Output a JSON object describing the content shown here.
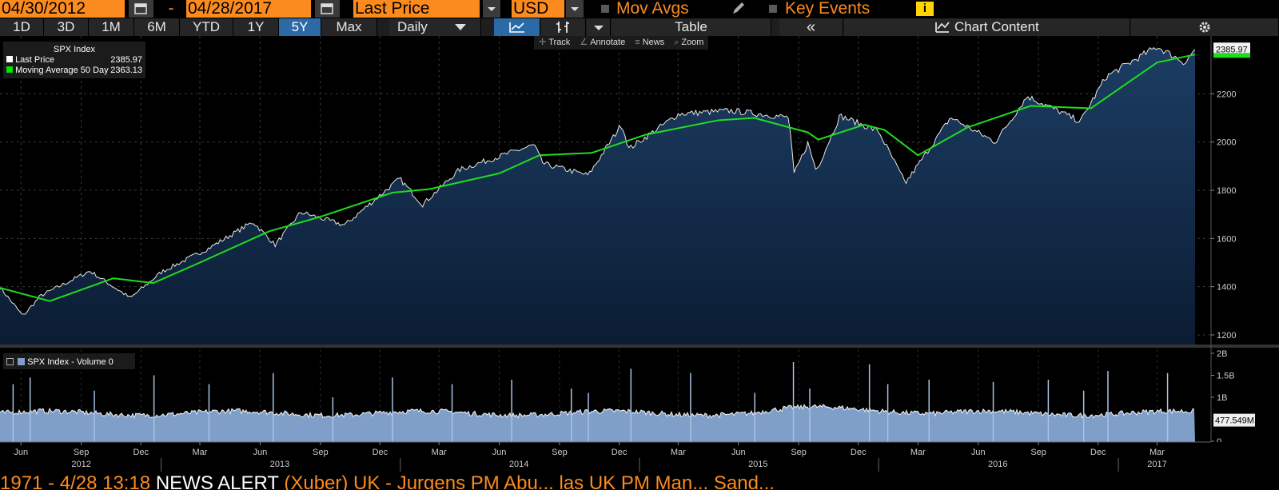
{
  "toolbar": {
    "start_date": "04/30/2012",
    "separator": "-",
    "end_date": "04/28/2017",
    "field": "Last Price",
    "currency": "USD",
    "mov_avgs": "Mov Avgs",
    "key_events": "Key Events",
    "info": "i"
  },
  "tabs": {
    "periods": [
      "1D",
      "3D",
      "1M",
      "6M",
      "YTD",
      "1Y",
      "5Y",
      "Max"
    ],
    "selected_period": "5Y",
    "frequency": "Daily",
    "table": "Table",
    "collapse": "«",
    "chart_content": "Chart Content"
  },
  "chart_tools": [
    "Track",
    "Annotate",
    "News",
    "Zoom"
  ],
  "legend": {
    "title": "SPX Index",
    "last_price_label": "Last Price",
    "last_price_value": "2385.97",
    "ma_label": "Moving Average 50 Day",
    "ma_value": "2363.13",
    "last_price_color": "#ffffff",
    "ma_color": "#00e000"
  },
  "price_badge": "2385.97",
  "volume_legend": {
    "label": "SPX Index - Volume 0",
    "badge": "477.549M"
  },
  "news": {
    "prefix": "1971 - 4/28 13:18",
    "alert": "NEWS ALERT",
    "text": "(Xuber) UK - Jurgens PM Abu... las UK PM Man... Sand..."
  },
  "chart_data": [
    {
      "type": "area",
      "title": "SPX Index",
      "series": [
        {
          "name": "Last Price",
          "x": [
            "2012-04-30",
            "2012-06-04",
            "2012-07-01",
            "2012-09-14",
            "2012-11-15",
            "2013-01-02",
            "2013-03-15",
            "2013-05-21",
            "2013-06-24",
            "2013-08-02",
            "2013-10-08",
            "2013-12-31",
            "2014-02-04",
            "2014-04-01",
            "2014-07-24",
            "2014-08-07",
            "2014-10-15",
            "2014-12-05",
            "2014-12-16",
            "2015-03-02",
            "2015-05-21",
            "2015-08-17",
            "2015-08-25",
            "2015-09-15",
            "2015-09-28",
            "2015-11-03",
            "2016-01-01",
            "2016-02-11",
            "2016-04-20",
            "2016-06-27",
            "2016-08-15",
            "2016-11-04",
            "2016-12-13",
            "2017-03-01",
            "2017-04-13",
            "2017-04-28"
          ],
          "y": [
            1398,
            1278,
            1362,
            1465,
            1353,
            1462,
            1560,
            1669,
            1573,
            1709,
            1655,
            1848,
            1741,
            1885,
            1988,
            1910,
            1862,
            2075,
            1972,
            2117,
            2130,
            2102,
            1867,
            1995,
            1881,
            2109,
            2044,
            1829,
            2102,
            2000,
            2190,
            2085,
            2271,
            2396,
            2329,
            2386
          ]
        },
        {
          "name": "Moving Average 50 Day",
          "x": [
            "2012-04-30",
            "2012-07-15",
            "2012-10-20",
            "2012-12-20",
            "2013-03-01",
            "2013-06-15",
            "2013-09-01",
            "2013-12-20",
            "2014-02-15",
            "2014-06-01",
            "2014-08-01",
            "2014-10-20",
            "2015-01-10",
            "2015-05-01",
            "2015-06-25",
            "2015-09-15",
            "2015-10-01",
            "2015-12-10",
            "2016-01-10",
            "2016-03-01",
            "2016-05-15",
            "2016-08-20",
            "2016-11-20",
            "2017-03-01",
            "2017-04-28"
          ],
          "y": [
            1395,
            1340,
            1435,
            1415,
            1500,
            1630,
            1690,
            1790,
            1805,
            1870,
            1945,
            1955,
            2030,
            2090,
            2100,
            2040,
            2010,
            2072,
            2050,
            1945,
            2060,
            2150,
            2140,
            2330,
            2363
          ]
        }
      ],
      "ylim": [
        1160,
        2440
      ],
      "y_ticks": [
        1200,
        1400,
        1600,
        1800,
        2000,
        2200
      ],
      "x_month_ticks": [
        "Jun",
        "Sep",
        "Dec",
        "Mar",
        "Jun",
        "Sep",
        "Dec",
        "Mar",
        "Jun",
        "Sep",
        "Dec",
        "Mar",
        "Jun",
        "Sep",
        "Dec",
        "Mar",
        "Jun",
        "Sep",
        "Dec",
        "Mar"
      ],
      "x_year_labels": [
        "2012",
        "2013",
        "2014",
        "2015",
        "2016",
        "2017"
      ],
      "grid": true
    },
    {
      "type": "bar",
      "title": "SPX Index - Volume 0",
      "baseline_volume": 0.65,
      "last_volume_millions": 477.549,
      "spikes": [
        {
          "date": "2012-05-20",
          "v": 1.3
        },
        {
          "date": "2012-06-15",
          "v": 1.45
        },
        {
          "date": "2012-09-21",
          "v": 1.15
        },
        {
          "date": "2012-12-21",
          "v": 1.5
        },
        {
          "date": "2013-03-15",
          "v": 1.3
        },
        {
          "date": "2013-06-21",
          "v": 1.55
        },
        {
          "date": "2013-09-20",
          "v": 1.0
        },
        {
          "date": "2013-12-20",
          "v": 1.45
        },
        {
          "date": "2014-03-21",
          "v": 1.3
        },
        {
          "date": "2014-06-20",
          "v": 1.4
        },
        {
          "date": "2014-09-19",
          "v": 1.2
        },
        {
          "date": "2014-10-15",
          "v": 1.1
        },
        {
          "date": "2014-12-19",
          "v": 1.65
        },
        {
          "date": "2015-03-20",
          "v": 1.55
        },
        {
          "date": "2015-06-26",
          "v": 1.1
        },
        {
          "date": "2015-08-24",
          "v": 1.8
        },
        {
          "date": "2015-09-18",
          "v": 1.2
        },
        {
          "date": "2015-12-18",
          "v": 1.75
        },
        {
          "date": "2016-01-15",
          "v": 1.3
        },
        {
          "date": "2016-03-18",
          "v": 1.4
        },
        {
          "date": "2016-06-24",
          "v": 1.35
        },
        {
          "date": "2016-09-16",
          "v": 1.4
        },
        {
          "date": "2016-11-09",
          "v": 1.15
        },
        {
          "date": "2016-12-16",
          "v": 1.6
        },
        {
          "date": "2017-03-17",
          "v": 1.55
        }
      ],
      "y_ticks": [
        "0",
        "1B",
        "1.5B",
        "2B"
      ],
      "ylim": [
        0,
        2.0
      ]
    }
  ]
}
